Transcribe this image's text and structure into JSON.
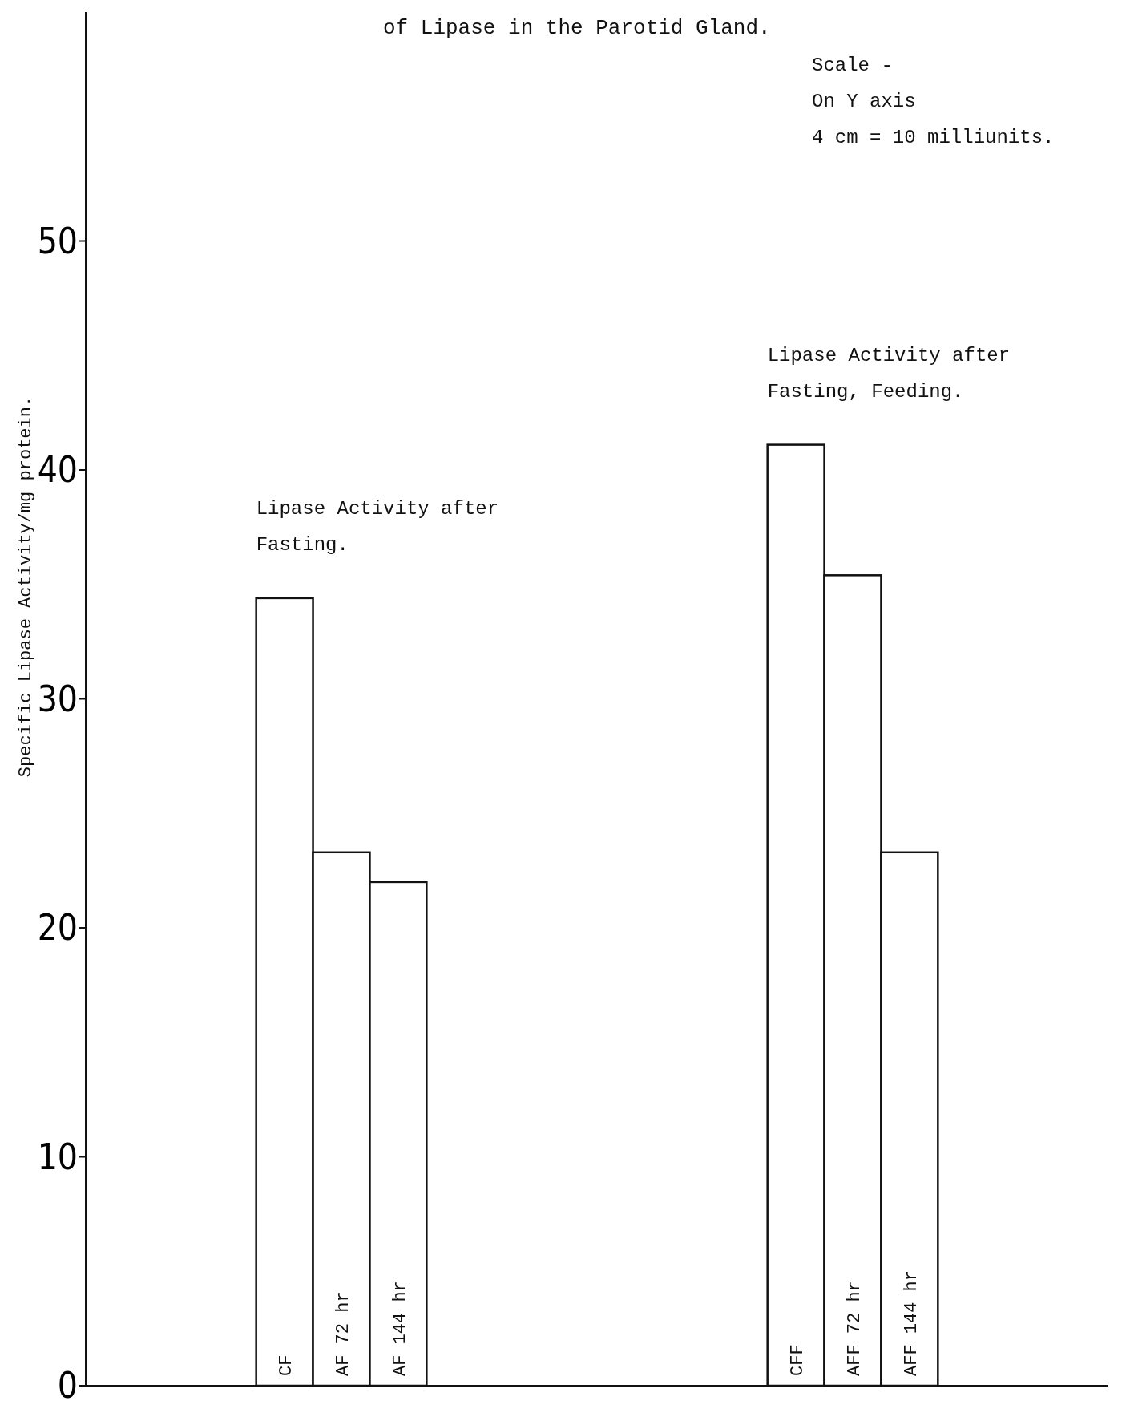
{
  "chart_data": {
    "type": "bar",
    "title": "of Lipase in the Parotid Gland.",
    "ylabel": "Specific Lipase Activity/mg protein.",
    "categories": [
      null,
      null,
      null,
      "CF",
      "AF 72 hr",
      "AF 144 hr",
      null,
      null,
      null,
      null,
      null,
      null,
      "CFF",
      "AFF 72 hr",
      "AFF 144 hr",
      null,
      null,
      null
    ],
    "values": [
      null,
      null,
      null,
      34.4,
      23.3,
      22.0,
      null,
      null,
      null,
      null,
      null,
      null,
      41.1,
      35.4,
      23.3,
      null,
      null,
      null
    ],
    "color": "#ffffff",
    "ylim": [
      0,
      60
    ],
    "yticks": [
      0,
      10,
      20,
      30,
      40,
      50
    ],
    "grid": false,
    "annotations": [
      "Scale -\nOn Y axis\n4 cm = 10 milliunits.",
      {
        "text": "Lipase Activity after\nFasting.",
        "x": "CF",
        "y": 34.4
      },
      {
        "text": "Lipase Activity after\nFasting, Feeding.",
        "x": "CFF",
        "y": 41.1
      }
    ]
  }
}
